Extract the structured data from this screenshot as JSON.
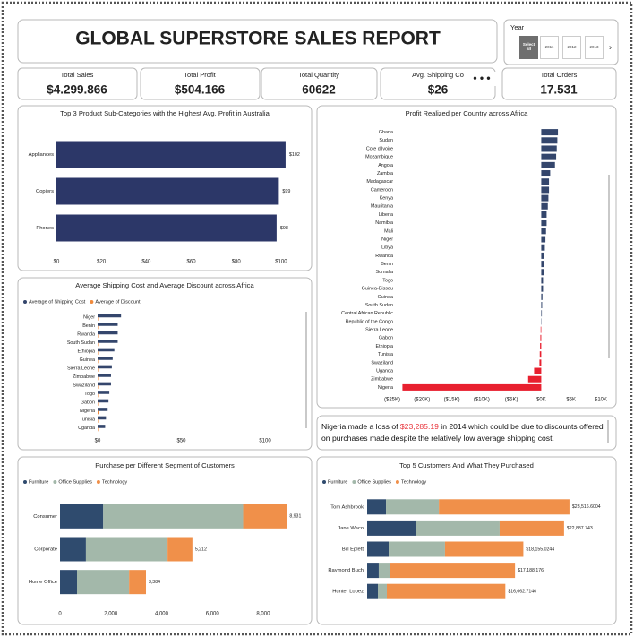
{
  "header": {
    "title": "GLOBAL SUPERSTORE SALES REPORT"
  },
  "slicer": {
    "title": "Year",
    "options": [
      "Select all",
      "2011",
      "2012",
      "2013"
    ]
  },
  "kpis": [
    {
      "label": "Total Sales",
      "value": "$4.299.866"
    },
    {
      "label": "Total Profit",
      "value": "$504.166"
    },
    {
      "label": "Total Quantity",
      "value": 60622
    },
    {
      "label": "Avg. Shipping Co",
      "value": "$26"
    },
    {
      "label": "Total Orders",
      "value": "17.531"
    }
  ],
  "chart_data": [
    {
      "type": "bar",
      "orientation": "horizontal",
      "title": "Top 3 Product Sub-Categories with the Highest Avg. Profit in Australia",
      "categories": [
        "Appliances",
        "Copiers",
        "Phones"
      ],
      "values": [
        102,
        99,
        98
      ],
      "value_labels": [
        "$102",
        "$99",
        "$98"
      ],
      "color": "#2c3768",
      "xlim": [
        0,
        110
      ],
      "xticks": [
        {
          "value": 0,
          "label": "$0"
        },
        {
          "value": 20,
          "label": "$20"
        },
        {
          "value": 40,
          "label": "$40"
        },
        {
          "value": 60,
          "label": "$60"
        },
        {
          "value": 80,
          "label": "$80"
        },
        {
          "value": 100,
          "label": "$100"
        }
      ]
    },
    {
      "type": "bar",
      "orientation": "horizontal",
      "title": "Profit Realized per Country across Africa",
      "categories": [
        "Ghana",
        "Sudan",
        "Cote d'Ivoire",
        "Mozambique",
        "Angola",
        "Zambia",
        "Madagascar",
        "Cameroon",
        "Kenya",
        "Mauritania",
        "Liberia",
        "Namibia",
        "Mali",
        "Niger",
        "Libya",
        "Rwanda",
        "Benin",
        "Somalia",
        "Togo",
        "Guinea-Bissau",
        "Guinea",
        "South Sudan",
        "Central African Republic",
        "Republic of the Congo",
        "Sierra Leone",
        "Gabon",
        "Ethiopia",
        "Tunisia",
        "Swaziland",
        "Uganda",
        "Zimbabwe",
        "Nigeria"
      ],
      "values": [
        2800,
        2700,
        2600,
        2500,
        2300,
        1500,
        1300,
        1300,
        1200,
        1100,
        900,
        900,
        800,
        700,
        600,
        500,
        500,
        400,
        300,
        300,
        200,
        150,
        100,
        50,
        -100,
        -150,
        -200,
        -250,
        -300,
        -1200,
        -2200,
        -23285.19
      ],
      "color": "#34466c",
      "negative_color": "#e8202f",
      "xlim": [
        -25000,
        10000
      ],
      "xticks": [
        {
          "value": -25000,
          "label": "($25K)"
        },
        {
          "value": -20000,
          "label": "($20K)"
        },
        {
          "value": -15000,
          "label": "($15K)"
        },
        {
          "value": -10000,
          "label": "($10K)"
        },
        {
          "value": -5000,
          "label": "($5K)"
        },
        {
          "value": 0,
          "label": "$0K"
        },
        {
          "value": 5000,
          "label": "$5K"
        },
        {
          "value": 10000,
          "label": "$10K"
        }
      ]
    },
    {
      "type": "bar",
      "orientation": "horizontal",
      "stacked": false,
      "legend": "top-left",
      "title": "Average Shipping Cost and Average Discount across Africa",
      "categories": [
        "Niger",
        "Benin",
        "Rwanda",
        "South Sudan",
        "Ethiopia",
        "Guinea",
        "Sierra Leone",
        "Zimbabwe",
        "Swaziland",
        "Togo",
        "Gabon",
        "Nigeria",
        "Tunisia",
        "Uganda"
      ],
      "series": [
        {
          "name": "Average of Shipping Cost",
          "color": "#34466c",
          "values": [
            14,
            12,
            12,
            12,
            10,
            9,
            8.5,
            8,
            8,
            7,
            6.5,
            6,
            5,
            4.5
          ]
        },
        {
          "name": "Average of Discount",
          "color": "#f08a3c",
          "values": [
            0.3,
            0.3,
            0.3,
            0.3,
            0.3,
            0.3,
            0.3,
            0.3,
            0.3,
            0.3,
            0.3,
            0.7,
            0.3,
            0.3
          ]
        }
      ],
      "xlim": [
        0,
        100
      ],
      "xticks": [
        {
          "value": 0,
          "label": "$0"
        },
        {
          "value": 50,
          "label": "$50"
        },
        {
          "value": 100,
          "label": "$100"
        }
      ]
    },
    {
      "type": "bar",
      "orientation": "horizontal",
      "stacked": true,
      "legend": "top-left",
      "title": "Purchase per Different Segment of Customers",
      "categories": [
        "Consumer",
        "Corporate",
        "Home Office"
      ],
      "series": [
        {
          "name": "Furniture",
          "color": "#2f4b6e",
          "values": [
            1700,
            1020,
            670
          ]
        },
        {
          "name": "Office Supplies",
          "color": "#a3b8aa",
          "values": [
            5510,
            3215,
            2050
          ]
        },
        {
          "name": "Technology",
          "color": "#f0904a",
          "values": [
            1721,
            977,
            664
          ]
        }
      ],
      "totals": [
        8931,
        5212,
        3384
      ],
      "total_labels": [
        "8,931",
        "5,212",
        "3,384"
      ],
      "xlim": [
        0,
        9800
      ],
      "xticks": [
        0,
        {
          "value": 2000,
          "label": "2,000"
        },
        {
          "value": 4000,
          "label": "4,000"
        },
        {
          "value": 6000,
          "label": "6,000"
        },
        {
          "value": 8000,
          "label": "8,000"
        }
      ]
    },
    {
      "type": "bar",
      "orientation": "horizontal",
      "stacked": true,
      "legend": "top-left",
      "title": "Top 5 Customers And What They Purchased",
      "categories": [
        "Tom Ashbrook",
        "Jane Waco",
        "Bill Eplett",
        "Raymond Buch",
        "Hunter Lopez"
      ],
      "series": [
        {
          "name": "Furniture",
          "color": "#2f4b6e",
          "values": [
            2190,
            5720,
            2500,
            1350,
            1250
          ]
        },
        {
          "name": "Office Supplies",
          "color": "#a3b8aa",
          "values": [
            6150,
            9680,
            6550,
            1350,
            1040
          ]
        },
        {
          "name": "Technology",
          "color": "#f0904a",
          "values": [
            15176.6004,
            7487.743,
            9105.0244,
            14488.176,
            13772.7146
          ]
        }
      ],
      "totals": [
        23516.6004,
        22887.743,
        18155.0244,
        17188.176,
        16062.7146
      ],
      "total_labels": [
        "$23,516.6004",
        "$22,887.743",
        "$18,155.0244",
        "$17,188.176",
        "$16,062.7146"
      ],
      "xlim": [
        0,
        28000
      ]
    }
  ],
  "note": {
    "before": "Nigeria made a loss of ",
    "highlight": "$23,285.19",
    "after": " in 2014 which could be due to discounts offered on purchases made despite the relatively low average shipping cost."
  }
}
